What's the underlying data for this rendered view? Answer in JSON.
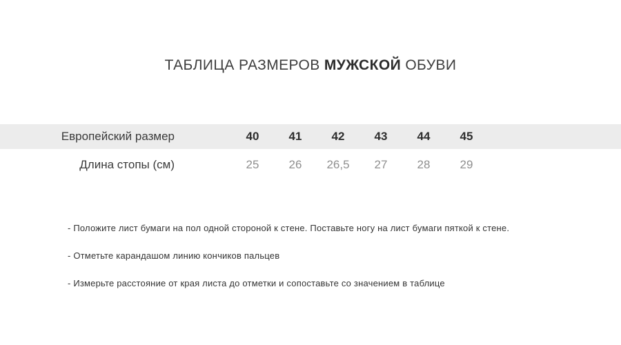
{
  "title": {
    "prefix": "ТАБЛИЦА РАЗМЕРОВ ",
    "bold": "МУЖСКОЙ",
    "suffix": " ОБУВИ"
  },
  "size_table": {
    "header_bg": "#ececec",
    "rows": [
      {
        "label": "Европейский размер",
        "values": [
          "40",
          "41",
          "42",
          "43",
          "44",
          "45"
        ]
      },
      {
        "label": "Длина стопы (см)",
        "values": [
          "25",
          "26",
          "26,5",
          "27",
          "28",
          "29"
        ]
      }
    ]
  },
  "instructions": [
    "- Положите лист бумаги на пол одной стороной к стене. Поставьте ногу на лист бумаги пяткой к стене.",
    "- Отметьте карандашом линию кончиков пальцев",
    "- Измерьте расстояние от края листа до отметки и сопоставьте со значением в таблице"
  ]
}
